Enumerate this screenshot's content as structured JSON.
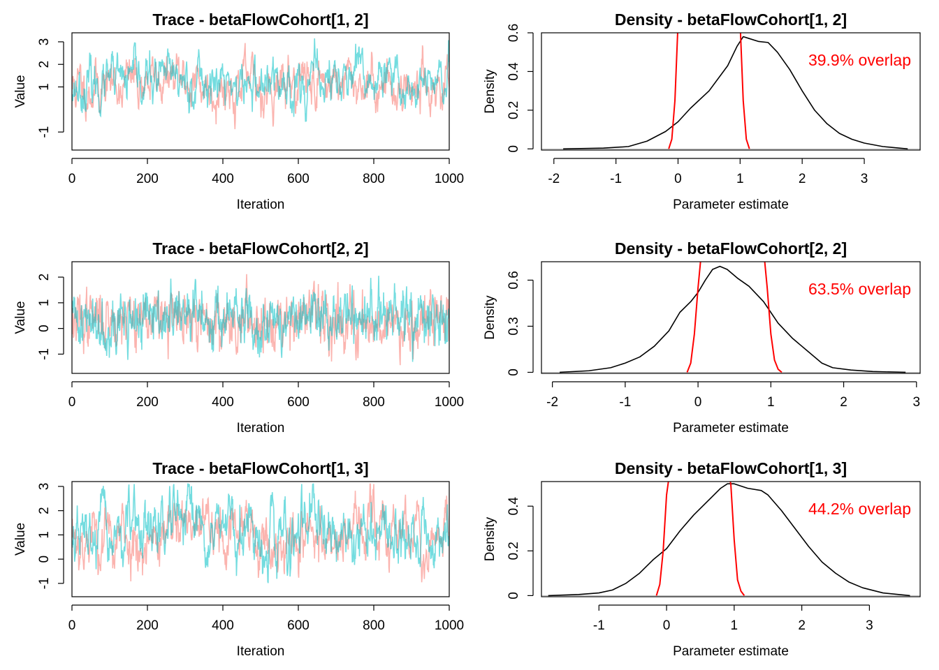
{
  "figure": {
    "colors": {
      "chain1": "#F8766D",
      "chain2": "#00BFC4",
      "prior": "#FF0000",
      "posterior": "#000000",
      "baseline": "#BEBEBE"
    }
  },
  "chart_data": [
    {
      "type": "line",
      "title": "Trace - betaFlowCohort[1, 2]",
      "xlabel": "Iteration",
      "ylabel": "Value",
      "xlim": [
        0,
        1000
      ],
      "ylim": [
        -1.8,
        3.4
      ],
      "xticks": [
        0,
        200,
        400,
        600,
        800,
        1000
      ],
      "yticks": [
        -1,
        1,
        2,
        3
      ],
      "n_iter": 1000,
      "series": [
        {
          "color": "#F8766D",
          "opacity": 0.55,
          "mean": 1.15,
          "sd": 0.62,
          "phi": 0.8,
          "min": -0.9,
          "max": 3.3,
          "seed": 11
        },
        {
          "color": "#00BFC4",
          "opacity": 0.55,
          "mean": 1.2,
          "sd": 0.6,
          "phi": 0.8,
          "min": -1.7,
          "max": 3.2,
          "seed": 23
        }
      ]
    },
    {
      "type": "line",
      "title": "Density - betaFlowCohort[1, 2]",
      "xlabel": "Parameter estimate",
      "ylabel": "Density",
      "xlim": [
        -2.2,
        3.9
      ],
      "ylim": [
        -0.006,
        0.6
      ],
      "xticks": [
        -2,
        -1,
        0,
        1,
        2,
        3
      ],
      "yticks": [
        0.0,
        0.2,
        0.4,
        0.6
      ],
      "annotation": "39.9% overlap",
      "series": [
        {
          "role": "posterior",
          "color": "#000000",
          "x": [
            -1.85,
            -1.2,
            -0.8,
            -0.5,
            -0.2,
            0.0,
            0.2,
            0.5,
            0.8,
            0.95,
            1.05,
            1.15,
            1.3,
            1.45,
            1.6,
            1.8,
            2.0,
            2.2,
            2.4,
            2.6,
            2.8,
            3.0,
            3.3,
            3.7
          ],
          "y": [
            0.0,
            0.004,
            0.012,
            0.04,
            0.09,
            0.14,
            0.21,
            0.3,
            0.43,
            0.53,
            0.58,
            0.57,
            0.555,
            0.55,
            0.5,
            0.41,
            0.3,
            0.2,
            0.13,
            0.08,
            0.05,
            0.03,
            0.012,
            0.0
          ]
        },
        {
          "role": "prior",
          "color": "#FF0000",
          "x": [
            -0.15,
            -0.1,
            -0.05,
            0.0,
            0.05,
            0.1,
            0.15,
            0.85,
            0.9,
            0.95,
            1.0,
            1.05,
            1.1,
            1.15
          ],
          "y": [
            0.0,
            0.05,
            0.25,
            0.65,
            0.65,
            0.65,
            0.65,
            0.65,
            0.65,
            0.65,
            0.65,
            0.25,
            0.05,
            0.0
          ]
        }
      ]
    },
    {
      "type": "line",
      "title": "Trace - betaFlowCohort[2, 2]",
      "xlabel": "Iteration",
      "ylabel": "Value",
      "xlim": [
        0,
        1000
      ],
      "ylim": [
        -1.75,
        2.6
      ],
      "xticks": [
        0,
        200,
        400,
        600,
        800,
        1000
      ],
      "yticks": [
        -1,
        0,
        1,
        2
      ],
      "n_iter": 1000,
      "series": [
        {
          "color": "#F8766D",
          "opacity": 0.55,
          "mean": 0.35,
          "sd": 0.55,
          "phi": 0.6,
          "min": -1.6,
          "max": 2.3,
          "seed": 37
        },
        {
          "color": "#00BFC4",
          "opacity": 0.55,
          "mean": 0.38,
          "sd": 0.55,
          "phi": 0.6,
          "min": -1.3,
          "max": 2.5,
          "seed": 41
        }
      ]
    },
    {
      "type": "line",
      "title": "Density - betaFlowCohort[2, 2]",
      "xlabel": "Parameter estimate",
      "ylabel": "Density",
      "xlim": [
        -2.15,
        3.05
      ],
      "ylim": [
        -0.007,
        0.72
      ],
      "xticks": [
        -2,
        -1,
        0,
        1,
        2,
        3
      ],
      "yticks": [
        0.0,
        0.3,
        0.6
      ],
      "annotation": "63.5% overlap",
      "series": [
        {
          "role": "posterior",
          "color": "#000000",
          "x": [
            -1.9,
            -1.5,
            -1.2,
            -1.0,
            -0.8,
            -0.6,
            -0.4,
            -0.25,
            -0.1,
            0.0,
            0.1,
            0.2,
            0.3,
            0.4,
            0.55,
            0.7,
            0.9,
            1.0,
            1.1,
            1.3,
            1.5,
            1.7,
            1.85,
            2.1,
            2.4,
            2.85
          ],
          "y": [
            0.0,
            0.01,
            0.03,
            0.06,
            0.1,
            0.17,
            0.27,
            0.39,
            0.46,
            0.52,
            0.6,
            0.67,
            0.69,
            0.67,
            0.61,
            0.56,
            0.46,
            0.39,
            0.32,
            0.22,
            0.14,
            0.06,
            0.03,
            0.015,
            0.005,
            0.0
          ]
        },
        {
          "role": "prior",
          "color": "#FF0000",
          "x": [
            -0.15,
            -0.1,
            -0.05,
            0.0,
            0.05,
            0.9,
            0.95,
            1.0,
            1.05,
            1.1,
            1.15
          ],
          "y": [
            0.0,
            0.06,
            0.25,
            0.55,
            0.8,
            0.8,
            0.55,
            0.25,
            0.08,
            0.02,
            0.0
          ]
        }
      ]
    },
    {
      "type": "line",
      "title": "Trace - betaFlowCohort[1, 3]",
      "xlabel": "Iteration",
      "ylabel": "Value",
      "xlim": [
        0,
        1000
      ],
      "ylim": [
        -1.55,
        3.2
      ],
      "xticks": [
        0,
        200,
        400,
        600,
        800,
        1000
      ],
      "yticks": [
        -1,
        0,
        1,
        2,
        3
      ],
      "n_iter": 1000,
      "series": [
        {
          "color": "#F8766D",
          "opacity": 0.55,
          "mean": 1.0,
          "sd": 0.7,
          "phi": 0.8,
          "min": -1.0,
          "max": 3.1,
          "seed": 53
        },
        {
          "color": "#00BFC4",
          "opacity": 0.55,
          "mean": 1.05,
          "sd": 0.7,
          "phi": 0.8,
          "min": -1.4,
          "max": 3.1,
          "seed": 67
        }
      ]
    },
    {
      "type": "line",
      "title": "Density - betaFlowCohort[1, 3]",
      "xlabel": "Parameter estimate",
      "ylabel": "Density",
      "xlim": [
        -1.85,
        3.75
      ],
      "ylim": [
        -0.005,
        0.51
      ],
      "xticks": [
        -1,
        0,
        1,
        2,
        3
      ],
      "yticks": [
        0.0,
        0.2,
        0.4
      ],
      "annotation": "44.2% overlap",
      "series": [
        {
          "role": "posterior",
          "color": "#000000",
          "x": [
            -1.75,
            -1.3,
            -1.0,
            -0.8,
            -0.6,
            -0.4,
            -0.2,
            0.0,
            0.2,
            0.4,
            0.6,
            0.8,
            0.9,
            1.0,
            1.2,
            1.4,
            1.5,
            1.7,
            1.9,
            2.1,
            2.3,
            2.5,
            2.7,
            2.9,
            3.2,
            3.6
          ],
          "y": [
            0.0,
            0.005,
            0.012,
            0.025,
            0.055,
            0.1,
            0.16,
            0.21,
            0.29,
            0.36,
            0.42,
            0.48,
            0.5,
            0.5,
            0.48,
            0.47,
            0.45,
            0.38,
            0.3,
            0.22,
            0.15,
            0.1,
            0.06,
            0.035,
            0.012,
            0.0
          ]
        },
        {
          "role": "prior",
          "color": "#FF0000",
          "x": [
            -0.15,
            -0.1,
            -0.05,
            0.0,
            0.05,
            0.9,
            0.95,
            1.0,
            1.05,
            1.1,
            1.15
          ],
          "y": [
            0.0,
            0.05,
            0.2,
            0.45,
            0.56,
            0.56,
            0.5,
            0.25,
            0.07,
            0.02,
            0.0
          ]
        }
      ]
    }
  ]
}
